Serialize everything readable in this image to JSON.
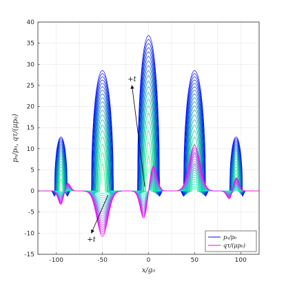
{
  "chart_data": {
    "type": "line",
    "xlabel": "x/g₀",
    "ylabel": "pₙ/p₀, qτ/(μp₀)",
    "xlim": [
      -120,
      120
    ],
    "ylim": [
      -15,
      40
    ],
    "xticks": [
      "-100",
      "-50",
      "0",
      "50",
      "100"
    ],
    "yticks": [
      "-15",
      "-10",
      "-5",
      "0",
      "5",
      "10",
      "15",
      "20",
      "25",
      "30",
      "35",
      "40"
    ],
    "grid": true,
    "legend": {
      "position": "bottom-right",
      "entries": [
        {
          "label": "pₙ/p₀",
          "color": "#0000ff"
        },
        {
          "label": "qτ/(μp₀)",
          "color": "#ff00ff"
        }
      ]
    },
    "annotations": [
      {
        "text": "+t",
        "arrow_from": [
          -4,
          1
        ],
        "arrow_to": [
          -18,
          25
        ]
      },
      {
        "text": "+t",
        "arrow_from": [
          -44,
          -1
        ],
        "arrow_to": [
          -62,
          -10
        ]
      }
    ],
    "series": [
      {
        "name": "pₙ/p₀",
        "color_range": [
          "#0000ff",
          "#00ff80"
        ],
        "bumps": [
          {
            "center": -95,
            "peak": 12.8,
            "halfwidth": 7
          },
          {
            "center": -50,
            "peak": 28.5,
            "halfwidth": 12
          },
          {
            "center": 0,
            "peak": 36.8,
            "halfwidth": 12
          },
          {
            "center": 50,
            "peak": 28.5,
            "halfwidth": 12
          },
          {
            "center": 95,
            "peak": 12.8,
            "halfwidth": 7
          }
        ],
        "min_value": -1.3
      },
      {
        "name": "qτ/(μp₀)",
        "color_range": [
          "#00ffc0",
          "#ff00ff"
        ],
        "extremes": [
          {
            "x": -95,
            "value": -3.3
          },
          {
            "x": -88,
            "value": 2.0
          },
          {
            "x": -50,
            "value": -10.8
          },
          {
            "x": -5,
            "value": -6.7
          },
          {
            "x": 5,
            "value": 6.2
          },
          {
            "x": 50,
            "value": 10.8
          },
          {
            "x": 95,
            "value": 3.3
          },
          {
            "x": 88,
            "value": -2.0
          }
        ]
      }
    ]
  }
}
